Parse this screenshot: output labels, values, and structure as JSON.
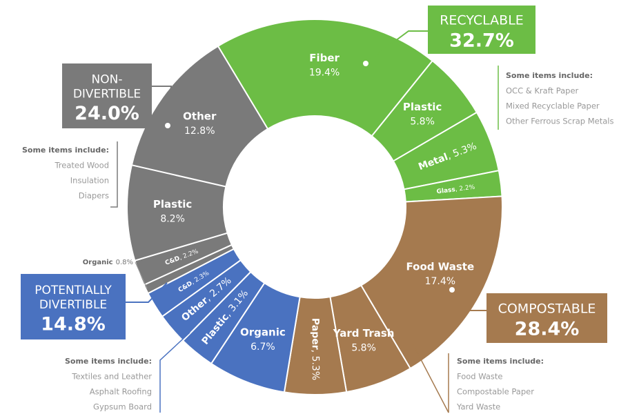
{
  "chart_data": {
    "type": "donut",
    "groups": [
      {
        "name": [
          "RECYCLABLE"
        ],
        "value": 32.7,
        "value_label": "32.7%",
        "color": "#6cbd45",
        "categories": [
          "Fiber",
          "Plastic",
          "Metal",
          "Glass"
        ],
        "values": [
          19.4,
          5.8,
          5.3,
          2.2
        ],
        "value_labels": [
          "19.4%",
          "5.8%",
          ", 5.3%",
          ", 2.2%"
        ],
        "items_title": "Some items include:",
        "items": [
          "OCC & Kraft Paper",
          "Mixed Recyclable Paper",
          "Other Ferrous Scrap Metals"
        ]
      },
      {
        "name": [
          "COMPOSTABLE"
        ],
        "value": 28.4,
        "value_label": "28.4%",
        "color": "#a57a4f",
        "categories": [
          "Food Waste",
          "Yard Trash",
          "Paper"
        ],
        "values": [
          17.4,
          5.8,
          5.3
        ],
        "value_labels": [
          "17.4%",
          "5.8%",
          ", 5.3%"
        ],
        "items_title": "Some items include:",
        "items": [
          "Food Waste",
          "Compostable Paper",
          "Yard Waste"
        ]
      },
      {
        "name": [
          "POTENTIALLY",
          "DIVERTIBLE"
        ],
        "value": 14.8,
        "value_label": "14.8%",
        "color": "#4a72c0",
        "categories": [
          "Organic",
          "Plastic",
          "Other",
          "C&D"
        ],
        "values": [
          6.7,
          3.1,
          2.7,
          2.3
        ],
        "value_labels": [
          "6.7%",
          ", 3.1%",
          ", 2.7%",
          ", 2.3%"
        ],
        "items_title": "Some items include:",
        "items": [
          "Textiles and Leather",
          "Asphalt Roofing",
          "Gypsum Board"
        ]
      },
      {
        "name": [
          "NON-",
          "DIVERTIBLE"
        ],
        "value": 24.0,
        "value_label": "24.0%",
        "color": "#7a7a7a",
        "categories": [
          "Organic",
          "C&D",
          "Plastic",
          "Other"
        ],
        "values": [
          0.8,
          2.2,
          8.2,
          12.8
        ],
        "value_labels": [
          "0.8%",
          ", 2.2%",
          "8.2%",
          "12.8%"
        ],
        "items_title": "Some items include:",
        "items": [
          "Treated Wood",
          "Insulation",
          "Diapers"
        ]
      }
    ]
  }
}
